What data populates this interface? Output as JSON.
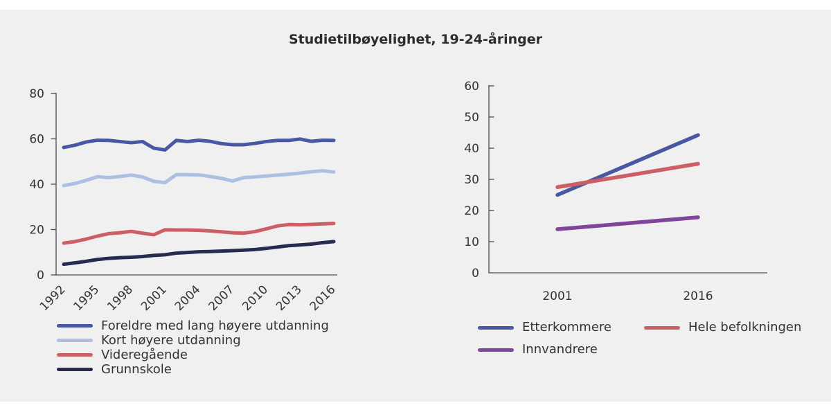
{
  "figure": {
    "background": "#f0f0f1",
    "title": "Studietilbøyelighet, 19-24-åringer"
  },
  "chart_data": [
    {
      "id": "left-chart",
      "type": "line",
      "title": "Studietilbøyelighet, 19-24-åringer",
      "xlabel": "",
      "ylabel": "",
      "ylim": [
        0,
        80
      ],
      "yticks": [
        0,
        20,
        40,
        60,
        80
      ],
      "grid": false,
      "legend_position": "bottom-left",
      "x_years": [
        1992,
        1993,
        1994,
        1995,
        1996,
        1997,
        1998,
        1999,
        2000,
        2001,
        2002,
        2003,
        2004,
        2005,
        2006,
        2007,
        2008,
        2009,
        2010,
        2011,
        2012,
        2013,
        2014,
        2015,
        2016
      ],
      "x_tick_labels": [
        "1992",
        "1995",
        "1998",
        "2001",
        "2004",
        "2007",
        "2010",
        "2013",
        "2016"
      ],
      "series": [
        {
          "name": "Foreldre med lang høyere utdanning",
          "color": "#4a58a3",
          "values": [
            56.2,
            57.2,
            58.6,
            59.4,
            59.3,
            58.8,
            58.3,
            58.8,
            55.9,
            55.1,
            59.3,
            58.8,
            59.4,
            58.9,
            57.9,
            57.4,
            57.4,
            58.0,
            58.8,
            59.3,
            59.3,
            59.9,
            58.9,
            59.4,
            59.3
          ]
        },
        {
          "name": "Kort høyere utdanning",
          "color": "#adbfe3",
          "values": [
            39.4,
            40.3,
            41.7,
            43.3,
            42.9,
            43.4,
            44.0,
            43.2,
            41.3,
            40.7,
            44.2,
            44.2,
            44.1,
            43.4,
            42.6,
            41.4,
            42.9,
            43.2,
            43.6,
            44.0,
            44.4,
            44.9,
            45.5,
            45.9,
            45.4
          ]
        },
        {
          "name": "Videregående",
          "color": "#cc5f65",
          "values": [
            14.0,
            14.7,
            15.8,
            17.1,
            18.2,
            18.6,
            19.2,
            18.4,
            17.7,
            19.9,
            19.8,
            19.8,
            19.7,
            19.4,
            19.0,
            18.6,
            18.4,
            19.1,
            20.3,
            21.6,
            22.2,
            22.1,
            22.3,
            22.5,
            22.7
          ]
        },
        {
          "name": "Grunnskole",
          "color": "#272b52",
          "values": [
            4.7,
            5.3,
            6.0,
            6.8,
            7.3,
            7.6,
            7.8,
            8.1,
            8.6,
            8.9,
            9.6,
            9.9,
            10.2,
            10.3,
            10.5,
            10.7,
            10.9,
            11.2,
            11.7,
            12.3,
            12.9,
            13.2,
            13.6,
            14.2,
            14.7
          ]
        }
      ]
    },
    {
      "id": "right-chart",
      "type": "line",
      "xlabel": "",
      "ylabel": "",
      "ylim": [
        0,
        60
      ],
      "yticks": [
        0,
        10,
        20,
        30,
        40,
        50,
        60
      ],
      "grid": false,
      "legend_position": "bottom-left",
      "categories": [
        "2001",
        "2016"
      ],
      "series": [
        {
          "name": "Etterkommere",
          "color": "#4a58a3",
          "values": [
            25.0,
            44.2
          ]
        },
        {
          "name": "Hele befolkningen",
          "color": "#cc5f65",
          "values": [
            27.5,
            35.0
          ]
        },
        {
          "name": "Innvandrere",
          "color": "#7f449b",
          "values": [
            14.0,
            17.8
          ]
        }
      ]
    }
  ]
}
